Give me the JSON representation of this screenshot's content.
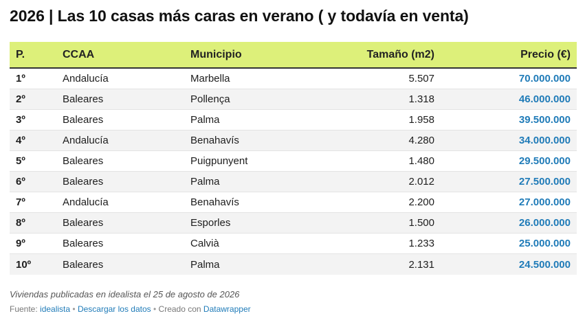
{
  "title": "2026 | Las 10 casas más caras en verano ( y todavía en venta)",
  "table": {
    "columns": {
      "pos": "P.",
      "ccaa": "CCAA",
      "municipio": "Municipio",
      "size": "Tamaño (m2)",
      "price": "Precio (€)"
    },
    "rows": [
      {
        "pos": "1º",
        "ccaa": "Andalucía",
        "municipio": "Marbella",
        "size": "5.507",
        "price": "70.000.000"
      },
      {
        "pos": "2º",
        "ccaa": "Baleares",
        "municipio": "Pollença",
        "size": "1.318",
        "price": "46.000.000"
      },
      {
        "pos": "3º",
        "ccaa": "Baleares",
        "municipio": "Palma",
        "size": "1.958",
        "price": "39.500.000"
      },
      {
        "pos": "4º",
        "ccaa": "Andalucía",
        "municipio": "Benahavís",
        "size": "4.280",
        "price": "34.000.000"
      },
      {
        "pos": "5º",
        "ccaa": "Baleares",
        "municipio": "Puigpunyent",
        "size": "1.480",
        "price": "29.500.000"
      },
      {
        "pos": "6º",
        "ccaa": "Baleares",
        "municipio": "Palma",
        "size": "2.012",
        "price": "27.500.000"
      },
      {
        "pos": "7º",
        "ccaa": "Andalucía",
        "municipio": "Benahavís",
        "size": "2.200",
        "price": "27.000.000"
      },
      {
        "pos": "8º",
        "ccaa": "Baleares",
        "municipio": "Esporles",
        "size": "1.500",
        "price": "26.000.000"
      },
      {
        "pos": "9º",
        "ccaa": "Baleares",
        "municipio": "Calvià",
        "size": "1.233",
        "price": "25.000.000"
      },
      {
        "pos": "10º",
        "ccaa": "Baleares",
        "municipio": "Palma",
        "size": "2.131",
        "price": "24.500.000"
      }
    ]
  },
  "notes": "Viviendas publicadas en idealista el 25 de agosto de 2026",
  "footer": {
    "source_label": "Fuente: ",
    "source_link": "idealista",
    "separator": " • ",
    "download_link": "Descargar los datos",
    "created_label": "Creado con ",
    "created_link": "Datawrapper"
  },
  "colors": {
    "header_bg": "#ddf07a",
    "price_accent": "#1f7bb8",
    "alt_row_bg": "#f3f3f3"
  }
}
